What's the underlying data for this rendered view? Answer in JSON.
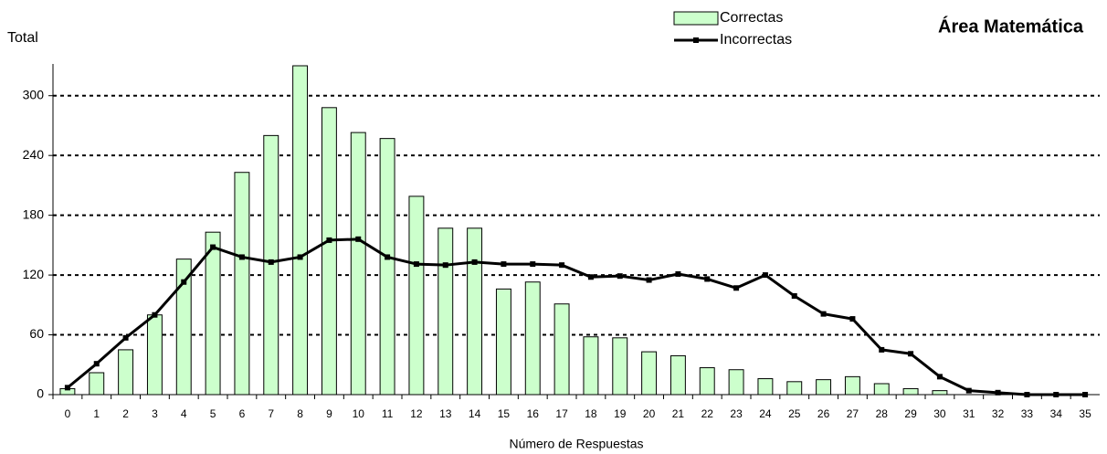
{
  "chart_data": {
    "type": "bar_line",
    "title": "Área Matemática",
    "y_label": "Total",
    "x_label": "Número de Respuestas",
    "categories": [
      "0",
      "1",
      "2",
      "3",
      "4",
      "5",
      "6",
      "7",
      "8",
      "9",
      "10",
      "11",
      "12",
      "13",
      "14",
      "15",
      "16",
      "17",
      "18",
      "19",
      "20",
      "21",
      "22",
      "23",
      "24",
      "25",
      "26",
      "27",
      "28",
      "29",
      "30",
      "31",
      "32",
      "33",
      "34",
      "35"
    ],
    "series": [
      {
        "name": "Correctas",
        "type": "bar",
        "color": "#ccffcc",
        "values": [
          6,
          22,
          45,
          80,
          136,
          163,
          223,
          260,
          330,
          288,
          263,
          257,
          199,
          167,
          167,
          106,
          113,
          91,
          58,
          57,
          43,
          39,
          27,
          25,
          16,
          13,
          15,
          18,
          11,
          6,
          4,
          0,
          0,
          0,
          0,
          0
        ]
      },
      {
        "name": "Incorrectas",
        "type": "line",
        "color": "#000000",
        "values": [
          7,
          31,
          57,
          80,
          113,
          148,
          138,
          133,
          138,
          155,
          156,
          138,
          131,
          130,
          133,
          131,
          131,
          130,
          118,
          119,
          115,
          121,
          116,
          107,
          120,
          99,
          81,
          76,
          45,
          41,
          18,
          4,
          2,
          0,
          0,
          0
        ]
      }
    ],
    "ylim": [
      0,
      330
    ],
    "yticks": [
      0,
      60,
      120,
      180,
      240,
      300
    ],
    "grid": true,
    "legend": "top"
  }
}
